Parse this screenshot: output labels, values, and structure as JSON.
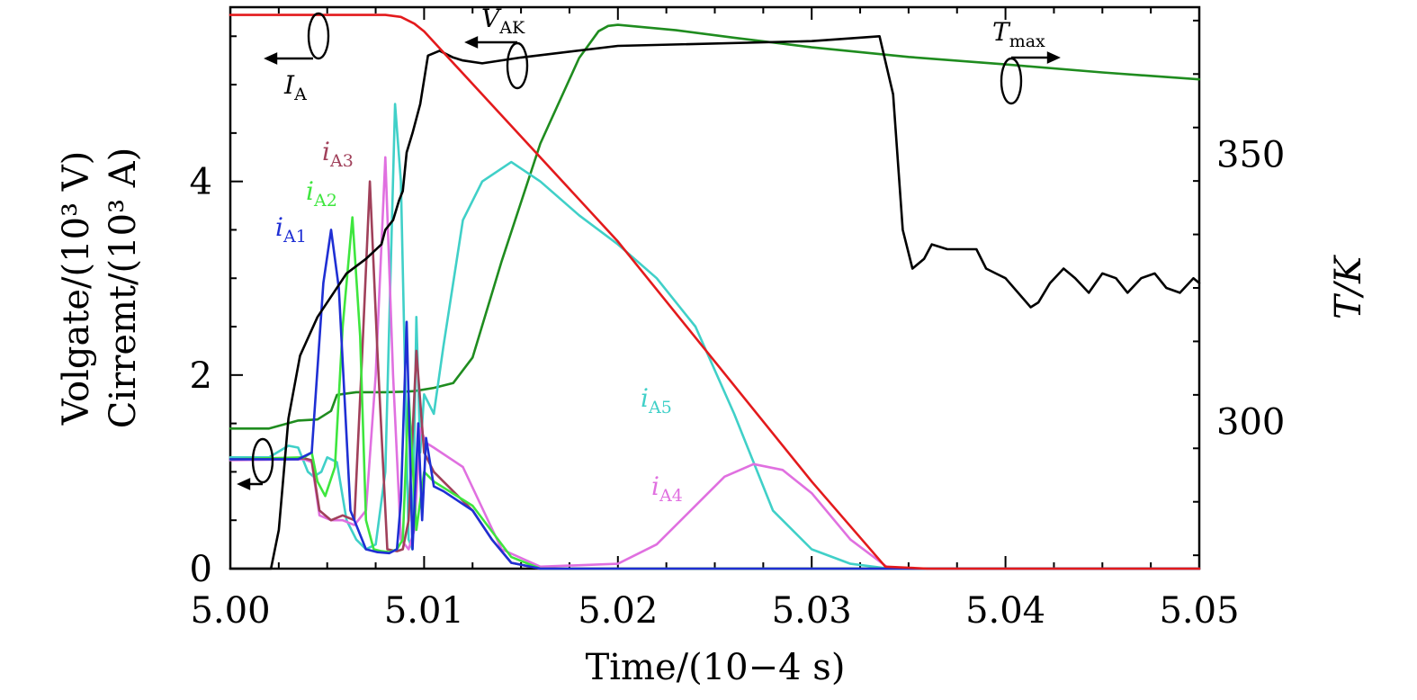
{
  "chart_data": {
    "type": "line",
    "xlabel": "Time/(10−4 s)",
    "ylabel_line1": "Volgate/(10³ V)",
    "ylabel_line2": "Cirremt/(10³ A)",
    "y2label": "T/K",
    "xlim": [
      5.0,
      5.05
    ],
    "ylim": [
      0,
      5.8
    ],
    "y2lim": [
      272.5,
      377.5
    ],
    "x_ticks": [
      "5.00",
      "5.01",
      "5.02",
      "5.03",
      "5.04",
      "5.05"
    ],
    "y_ticks": [
      "0",
      "2",
      "4"
    ],
    "y2_ticks": [
      "300",
      "350"
    ],
    "x_tick_values": [
      5.0,
      5.01,
      5.02,
      5.03,
      5.04,
      5.05
    ],
    "y_tick_values": [
      0,
      2,
      4
    ],
    "y2_tick_values": [
      300,
      350
    ],
    "colors": {
      "I_A": "#e31a1c",
      "V_AK": "#000000",
      "T_max": "#1f8c1f",
      "i_A1": "#1f2fd4",
      "i_A2": "#3ee63e",
      "i_A3": "#a0405a",
      "i_A4": "#e070e0",
      "i_A5": "#40d0c8"
    },
    "series": [
      {
        "key": "I_A",
        "name": "I_A",
        "axis": "left",
        "x": [
          5.0,
          5.008,
          5.0088,
          5.0095,
          5.01,
          5.02,
          5.03,
          5.0338,
          5.036,
          5.05
        ],
        "y": [
          5.72,
          5.72,
          5.7,
          5.63,
          5.55,
          3.38,
          0.9,
          0.02,
          0.0,
          0.0
        ]
      },
      {
        "key": "V_AK",
        "name": "V_AK",
        "axis": "left",
        "x": [
          5.0,
          5.0021,
          5.0025,
          5.003,
          5.0036,
          5.0045,
          5.006,
          5.007,
          5.0078,
          5.008,
          5.0084,
          5.0087,
          5.0089,
          5.0091,
          5.0094,
          5.0098,
          5.0102,
          5.0108,
          5.0115,
          5.012,
          5.013,
          5.015,
          5.02,
          5.03,
          5.0335,
          5.0342,
          5.0347,
          5.0352,
          5.0358,
          5.0362,
          5.037,
          5.0385,
          5.039,
          5.0395,
          5.04,
          5.0413,
          5.0417,
          5.0423,
          5.043,
          5.0436,
          5.0443,
          5.045,
          5.0457,
          5.0463,
          5.047,
          5.0477,
          5.0483,
          5.049,
          5.0497,
          5.05
        ],
        "y": [
          0.0,
          0.0,
          0.4,
          1.55,
          2.2,
          2.6,
          3.05,
          3.2,
          3.35,
          3.5,
          3.6,
          3.8,
          3.9,
          4.3,
          4.5,
          4.8,
          5.3,
          5.35,
          5.28,
          5.25,
          5.22,
          5.28,
          5.4,
          5.45,
          5.5,
          4.9,
          3.5,
          3.1,
          3.2,
          3.35,
          3.3,
          3.3,
          3.1,
          3.05,
          3.0,
          2.7,
          2.75,
          2.95,
          3.1,
          3.0,
          2.85,
          3.05,
          3.0,
          2.85,
          3.0,
          3.05,
          2.9,
          2.85,
          3.0,
          2.95
        ]
      },
      {
        "key": "T_max",
        "name": "T_max",
        "axis": "right",
        "x": [
          5.0,
          5.002,
          5.0035,
          5.0045,
          5.0052,
          5.0055,
          5.0065,
          5.008,
          5.009,
          5.0095,
          5.0105,
          5.0115,
          5.0125,
          5.014,
          5.016,
          5.018,
          5.019,
          5.0195,
          5.02,
          5.023,
          5.026,
          5.03,
          5.035,
          5.04,
          5.045,
          5.05
        ],
        "y": [
          298.7,
          298.7,
          300.2,
          300.4,
          302.0,
          305.0,
          305.5,
          305.5,
          305.6,
          305.7,
          306.3,
          307.2,
          312.0,
          330.0,
          352.0,
          368.0,
          373.0,
          374.0,
          374.2,
          373.2,
          371.8,
          370.0,
          368.2,
          366.8,
          365.3,
          364.0
        ]
      },
      {
        "key": "i_A1",
        "name": "i_A1",
        "axis": "left",
        "x": [
          5.0,
          5.002,
          5.0035,
          5.0042,
          5.0048,
          5.0052,
          5.0056,
          5.0062,
          5.007,
          5.0076,
          5.0082,
          5.0086,
          5.0088,
          5.0091,
          5.0094,
          5.0097,
          5.0099,
          5.0101,
          5.0105,
          5.011,
          5.0125,
          5.0135,
          5.0145,
          5.016,
          5.05
        ],
        "y": [
          1.13,
          1.13,
          1.13,
          1.2,
          2.95,
          3.5,
          2.9,
          0.6,
          0.2,
          0.17,
          0.16,
          0.2,
          0.7,
          2.55,
          0.2,
          1.5,
          0.5,
          1.35,
          0.85,
          0.8,
          0.6,
          0.3,
          0.06,
          0.0,
          0.0
        ]
      },
      {
        "key": "i_A2",
        "name": "i_A2",
        "axis": "left",
        "x": [
          5.0,
          5.0038,
          5.0042,
          5.0045,
          5.0049,
          5.0054,
          5.0058,
          5.0063,
          5.0067,
          5.007,
          5.0074,
          5.0078,
          5.0082,
          5.0086,
          5.0089,
          5.0092,
          5.0096,
          5.01,
          5.0105,
          5.0125,
          5.0145,
          5.016,
          5.05
        ],
        "y": [
          1.13,
          1.15,
          1.2,
          0.9,
          0.75,
          1.05,
          2.5,
          3.63,
          2.4,
          0.5,
          0.2,
          0.18,
          0.17,
          0.2,
          0.3,
          1.8,
          0.4,
          1.0,
          0.9,
          0.65,
          0.12,
          0.0,
          0.0
        ]
      },
      {
        "key": "i_A3",
        "name": "i_A3",
        "axis": "left",
        "x": [
          5.0,
          5.0038,
          5.0042,
          5.0046,
          5.0052,
          5.0058,
          5.0064,
          5.0068,
          5.0072,
          5.0076,
          5.0081,
          5.0086,
          5.0089,
          5.0092,
          5.0096,
          5.01,
          5.0105,
          5.011,
          5.0125,
          5.0135,
          5.0145,
          5.016,
          5.05
        ],
        "y": [
          1.13,
          1.14,
          1.12,
          0.6,
          0.5,
          0.55,
          0.5,
          2.2,
          4.0,
          2.2,
          0.2,
          0.18,
          0.2,
          0.5,
          2.25,
          1.2,
          1.0,
          0.9,
          0.6,
          0.3,
          0.06,
          0.0,
          0.0
        ]
      },
      {
        "key": "i_A4",
        "name": "i_A4",
        "axis": "left",
        "x": [
          5.0,
          5.0038,
          5.0042,
          5.0046,
          5.0052,
          5.0058,
          5.0064,
          5.007,
          5.0075,
          5.008,
          5.0084,
          5.0088,
          5.0092,
          5.0095,
          5.0098,
          5.0101,
          5.0105,
          5.012,
          5.014,
          5.016,
          5.02,
          5.022,
          5.024,
          5.0255,
          5.027,
          5.0285,
          5.03,
          5.032,
          5.034,
          5.05
        ],
        "y": [
          1.12,
          1.13,
          1.1,
          0.55,
          0.5,
          0.5,
          0.45,
          0.6,
          2.0,
          4.25,
          2.0,
          0.3,
          0.2,
          0.4,
          1.45,
          1.3,
          1.25,
          1.05,
          0.2,
          0.02,
          0.05,
          0.25,
          0.65,
          0.95,
          1.08,
          1.02,
          0.78,
          0.3,
          0.0,
          0.0
        ]
      },
      {
        "key": "i_A5",
        "name": "i_A5",
        "axis": "left",
        "x": [
          5.0,
          5.002,
          5.003,
          5.0035,
          5.004,
          5.0043,
          5.0047,
          5.005,
          5.0055,
          5.006,
          5.0065,
          5.007,
          5.0075,
          5.008,
          5.0085,
          5.0088,
          5.0092,
          5.0094,
          5.0096,
          5.0098,
          5.01,
          5.0105,
          5.011,
          5.012,
          5.013,
          5.0145,
          5.016,
          5.018,
          5.02,
          5.022,
          5.024,
          5.026,
          5.028,
          5.03,
          5.032,
          5.034,
          5.05
        ],
        "y": [
          1.15,
          1.15,
          1.27,
          1.25,
          1.0,
          0.95,
          1.0,
          1.15,
          1.1,
          0.5,
          0.3,
          0.2,
          0.25,
          1.0,
          4.8,
          4.0,
          0.3,
          0.2,
          2.6,
          1.2,
          1.8,
          1.6,
          2.3,
          3.6,
          4.0,
          4.2,
          4.0,
          3.65,
          3.35,
          3.0,
          2.5,
          1.6,
          0.6,
          0.2,
          0.05,
          0.0,
          0.0
        ]
      }
    ],
    "annotations": {
      "I_A": {
        "base": "I",
        "sub": "A"
      },
      "V_AK": {
        "base": "V",
        "sub": "AK"
      },
      "T_max": {
        "base": "T",
        "sub": "max"
      },
      "i_A1": {
        "base": "i",
        "sub": "A1"
      },
      "i_A2": {
        "base": "i",
        "sub": "A2"
      },
      "i_A3": {
        "base": "i",
        "sub": "A3"
      },
      "i_A4": {
        "base": "i",
        "sub": "A4"
      },
      "i_A5": {
        "base": "i",
        "sub": "A5"
      }
    }
  }
}
